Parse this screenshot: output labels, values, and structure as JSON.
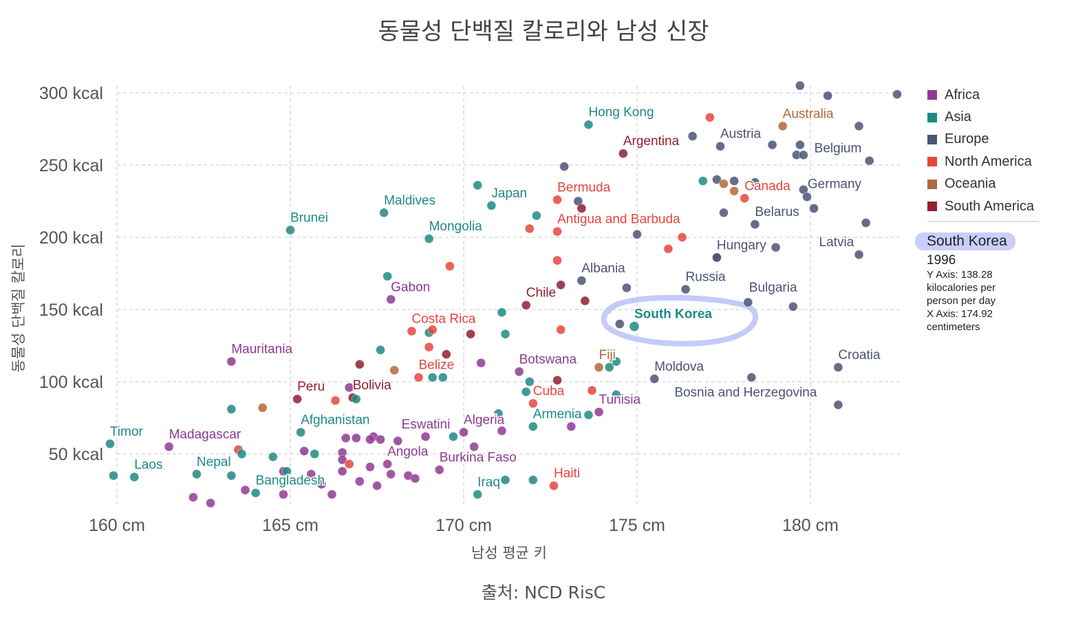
{
  "title": "동물성 단백질 칼로리와 남성 신장",
  "source": "출처: NCD RisC",
  "tooltip": {
    "country": "South Korea",
    "year": "1996",
    "y_text": "Y Axis: 138.28 kilocalories per person per day",
    "x_text": "X Axis: 174.92 centimeters"
  },
  "colors": {
    "Africa": "#8e3a94",
    "Asia": "#1f8a84",
    "Europe": "#4a5473",
    "North America": "#e5463d",
    "Oceania": "#b0693a",
    "South America": "#921f2f",
    "highlight": "#c4cafa"
  },
  "chart_data": {
    "type": "scatter",
    "xlabel": "남성 평균 키",
    "ylabel": "동물성 단백질 칼로리",
    "x_ticks": [
      "160 cm",
      "165 cm",
      "170 cm",
      "175 cm",
      "180 cm"
    ],
    "y_ticks": [
      "50 kcal",
      "100 kcal",
      "150 kcal",
      "200 kcal",
      "250 kcal",
      "300 kcal"
    ],
    "xlim": [
      159.8,
      182.6
    ],
    "ylim": [
      16,
      302
    ],
    "grid": true,
    "legend_position": "right",
    "legend": [
      "Africa",
      "Asia",
      "Europe",
      "North America",
      "Oceania",
      "South America"
    ],
    "highlighted": "South Korea",
    "points": [
      {
        "label": "Hong Kong",
        "region": "Asia",
        "x": 173.6,
        "y": 278
      },
      {
        "label": "Australia",
        "region": "Oceania",
        "x": 179.2,
        "y": 277
      },
      {
        "label": "Argentina",
        "region": "South America",
        "x": 174.6,
        "y": 258
      },
      {
        "label": "Austria",
        "region": "Europe",
        "x": 177.4,
        "y": 263
      },
      {
        "label": "Belgium",
        "region": "Europe",
        "x": 181.7,
        "y": 253
      },
      {
        "label": "Bermuda",
        "region": "North America",
        "x": 172.7,
        "y": 226
      },
      {
        "label": "Japan",
        "region": "Asia",
        "x": 170.8,
        "y": 222
      },
      {
        "label": "Canada",
        "region": "North America",
        "x": 178.1,
        "y": 227
      },
      {
        "label": "Germany",
        "region": "Europe",
        "x": 179.8,
        "y": 233
      },
      {
        "label": "Maldives",
        "region": "Asia",
        "x": 167.7,
        "y": 217
      },
      {
        "label": "Brunei",
        "region": "Asia",
        "x": 165.0,
        "y": 205
      },
      {
        "label": "Antigua and Barbuda",
        "region": "North America",
        "x": 172.7,
        "y": 204
      },
      {
        "label": "Belarus",
        "region": "Europe",
        "x": 178.4,
        "y": 209
      },
      {
        "label": "Mongolia",
        "region": "Asia",
        "x": 169.0,
        "y": 199
      },
      {
        "label": "Hungary",
        "region": "Europe",
        "x": 177.3,
        "y": 186
      },
      {
        "label": "Latvia",
        "region": "Europe",
        "x": 181.4,
        "y": 188
      },
      {
        "label": "Albania",
        "region": "Europe",
        "x": 173.4,
        "y": 170
      },
      {
        "label": "Russia",
        "region": "Europe",
        "x": 176.4,
        "y": 164
      },
      {
        "label": "Gabon",
        "region": "Africa",
        "x": 167.9,
        "y": 157
      },
      {
        "label": "Chile",
        "region": "South America",
        "x": 171.8,
        "y": 153
      },
      {
        "label": "Bulgaria",
        "region": "Europe",
        "x": 179.5,
        "y": 152
      },
      {
        "label": "South Korea",
        "region": "Asia",
        "x": 174.92,
        "y": 138.28
      },
      {
        "label": "Costa Rica",
        "region": "North America",
        "x": 168.5,
        "y": 135
      },
      {
        "label": "Mauritania",
        "region": "Africa",
        "x": 163.3,
        "y": 114
      },
      {
        "label": "Fiji",
        "region": "Oceania",
        "x": 173.9,
        "y": 110
      },
      {
        "label": "Botswana",
        "region": "Africa",
        "x": 171.6,
        "y": 107
      },
      {
        "label": "Belize",
        "region": "North America",
        "x": 168.7,
        "y": 103
      },
      {
        "label": "Croatia",
        "region": "Europe",
        "x": 180.8,
        "y": 110
      },
      {
        "label": "Moldova",
        "region": "Europe",
        "x": 175.5,
        "y": 102
      },
      {
        "label": "Peru",
        "region": "South America",
        "x": 165.2,
        "y": 88
      },
      {
        "label": "Bolivia",
        "region": "South America",
        "x": 166.8,
        "y": 89
      },
      {
        "label": "Cuba",
        "region": "North America",
        "x": 172.0,
        "y": 85
      },
      {
        "label": "Bosnia and Herzegovina",
        "region": "Europe",
        "x": 180.8,
        "y": 84
      },
      {
        "label": "Tunisia",
        "region": "Africa",
        "x": 173.9,
        "y": 79
      },
      {
        "label": "Armenia",
        "region": "Asia",
        "x": 172.0,
        "y": 69
      },
      {
        "label": "Afghanistan",
        "region": "Asia",
        "x": 165.3,
        "y": 65
      },
      {
        "label": "Eswatini",
        "region": "Africa",
        "x": 168.9,
        "y": 62
      },
      {
        "label": "Algeria",
        "region": "Africa",
        "x": 170.0,
        "y": 65
      },
      {
        "label": "Timor",
        "region": "Asia",
        "x": 159.8,
        "y": 57
      },
      {
        "label": "Madagascar",
        "region": "Africa",
        "x": 161.5,
        "y": 55
      },
      {
        "label": "Nepal",
        "region": "Asia",
        "x": 162.3,
        "y": 36
      },
      {
        "label": "Laos",
        "region": "Asia",
        "x": 160.5,
        "y": 34
      },
      {
        "label": "Angola",
        "region": "Africa",
        "x": 167.8,
        "y": 43
      },
      {
        "label": "Burkina Faso",
        "region": "Africa",
        "x": 169.3,
        "y": 39
      },
      {
        "label": "Bangladesh",
        "region": "Asia",
        "x": 164.0,
        "y": 23
      },
      {
        "label": "Haiti",
        "region": "North America",
        "x": 172.6,
        "y": 28
      },
      {
        "label": "Iraq",
        "region": "Asia",
        "x": 170.4,
        "y": 22
      },
      {
        "region": "Europe",
        "x": 179.7,
        "y": 305
      },
      {
        "region": "Europe",
        "x": 180.5,
        "y": 298
      },
      {
        "region": "Europe",
        "x": 182.5,
        "y": 299
      },
      {
        "region": "North America",
        "x": 177.1,
        "y": 283
      },
      {
        "region": "Europe",
        "x": 181.4,
        "y": 277
      },
      {
        "region": "Europe",
        "x": 176.6,
        "y": 270
      },
      {
        "region": "Europe",
        "x": 178.9,
        "y": 264
      },
      {
        "region": "Europe",
        "x": 179.7,
        "y": 264
      },
      {
        "region": "Europe",
        "x": 179.6,
        "y": 257
      },
      {
        "region": "Europe",
        "x": 179.8,
        "y": 257
      },
      {
        "region": "Europe",
        "x": 172.9,
        "y": 249
      },
      {
        "region": "Asia",
        "x": 170.4,
        "y": 236
      },
      {
        "region": "Asia",
        "x": 176.9,
        "y": 239
      },
      {
        "region": "Europe",
        "x": 177.3,
        "y": 240
      },
      {
        "region": "Oceania",
        "x": 177.5,
        "y": 237
      },
      {
        "region": "Europe",
        "x": 177.8,
        "y": 239
      },
      {
        "region": "Oceania",
        "x": 177.8,
        "y": 232
      },
      {
        "region": "Europe",
        "x": 178.4,
        "y": 238
      },
      {
        "region": "Europe",
        "x": 179.9,
        "y": 228
      },
      {
        "region": "Europe",
        "x": 180.1,
        "y": 220
      },
      {
        "region": "Europe",
        "x": 173.3,
        "y": 225
      },
      {
        "region": "South America",
        "x": 173.4,
        "y": 220
      },
      {
        "region": "Asia",
        "x": 172.1,
        "y": 215
      },
      {
        "region": "Europe",
        "x": 177.5,
        "y": 217
      },
      {
        "region": "Europe",
        "x": 181.6,
        "y": 210
      },
      {
        "region": "North America",
        "x": 171.9,
        "y": 206
      },
      {
        "region": "Europe",
        "x": 175.0,
        "y": 202
      },
      {
        "region": "North America",
        "x": 176.3,
        "y": 200
      },
      {
        "region": "North America",
        "x": 175.9,
        "y": 192
      },
      {
        "region": "Europe",
        "x": 179.0,
        "y": 193
      },
      {
        "region": "Europe",
        "x": 177.3,
        "y": 186
      },
      {
        "region": "North America",
        "x": 172.7,
        "y": 184
      },
      {
        "region": "North America",
        "x": 169.6,
        "y": 180
      },
      {
        "region": "Asia",
        "x": 167.8,
        "y": 173
      },
      {
        "region": "South America",
        "x": 172.8,
        "y": 167
      },
      {
        "region": "Europe",
        "x": 174.7,
        "y": 165
      },
      {
        "region": "South America",
        "x": 173.5,
        "y": 156
      },
      {
        "region": "Europe",
        "x": 178.2,
        "y": 155
      },
      {
        "region": "Asia",
        "x": 171.1,
        "y": 148
      },
      {
        "region": "Europe",
        "x": 174.5,
        "y": 140
      },
      {
        "region": "Asia",
        "x": 169.0,
        "y": 134
      },
      {
        "region": "North America",
        "x": 169.1,
        "y": 136
      },
      {
        "region": "South America",
        "x": 170.2,
        "y": 133
      },
      {
        "region": "Asia",
        "x": 171.2,
        "y": 133
      },
      {
        "region": "North America",
        "x": 172.8,
        "y": 136
      },
      {
        "region": "North America",
        "x": 169.0,
        "y": 124
      },
      {
        "region": "South America",
        "x": 169.5,
        "y": 119
      },
      {
        "region": "Asia",
        "x": 167.6,
        "y": 122
      },
      {
        "region": "Africa",
        "x": 170.5,
        "y": 113
      },
      {
        "region": "South America",
        "x": 167.0,
        "y": 112
      },
      {
        "region": "Oceania",
        "x": 168.0,
        "y": 108
      },
      {
        "region": "Asia",
        "x": 174.2,
        "y": 110
      },
      {
        "region": "Asia",
        "x": 174.4,
        "y": 114
      },
      {
        "region": "Asia",
        "x": 169.1,
        "y": 103
      },
      {
        "region": "Asia",
        "x": 169.4,
        "y": 103
      },
      {
        "region": "Asia",
        "x": 171.9,
        "y": 100
      },
      {
        "region": "South America",
        "x": 172.7,
        "y": 101
      },
      {
        "region": "Europe",
        "x": 178.3,
        "y": 103
      },
      {
        "region": "Asia",
        "x": 171.8,
        "y": 93
      },
      {
        "region": "North America",
        "x": 173.7,
        "y": 94
      },
      {
        "region": "Asia",
        "x": 174.4,
        "y": 91
      },
      {
        "region": "Africa",
        "x": 166.7,
        "y": 96
      },
      {
        "region": "North America",
        "x": 166.3,
        "y": 87
      },
      {
        "region": "Asia",
        "x": 166.9,
        "y": 88
      },
      {
        "region": "Asia",
        "x": 163.3,
        "y": 81
      },
      {
        "region": "Oceania",
        "x": 164.2,
        "y": 82
      },
      {
        "region": "Asia",
        "x": 171.0,
        "y": 78
      },
      {
        "region": "Asia",
        "x": 173.6,
        "y": 77
      },
      {
        "region": "Africa",
        "x": 173.1,
        "y": 69
      },
      {
        "region": "Africa",
        "x": 171.1,
        "y": 66
      },
      {
        "region": "Asia",
        "x": 169.7,
        "y": 62
      },
      {
        "region": "Africa",
        "x": 170.3,
        "y": 55
      },
      {
        "region": "Africa",
        "x": 166.6,
        "y": 61
      },
      {
        "region": "Africa",
        "x": 166.9,
        "y": 61
      },
      {
        "region": "Africa",
        "x": 167.4,
        "y": 62
      },
      {
        "region": "Africa",
        "x": 167.6,
        "y": 60
      },
      {
        "region": "Africa",
        "x": 168.1,
        "y": 59
      },
      {
        "region": "Africa",
        "x": 167.3,
        "y": 60
      },
      {
        "region": "Africa",
        "x": 165.4,
        "y": 52
      },
      {
        "region": "Africa",
        "x": 166.5,
        "y": 51
      },
      {
        "region": "Asia",
        "x": 165.7,
        "y": 50
      },
      {
        "region": "North America",
        "x": 163.5,
        "y": 53
      },
      {
        "region": "Asia",
        "x": 163.6,
        "y": 50
      },
      {
        "region": "Asia",
        "x": 164.5,
        "y": 48
      },
      {
        "region": "Africa",
        "x": 166.5,
        "y": 46
      },
      {
        "region": "North America",
        "x": 166.7,
        "y": 43
      },
      {
        "region": "Africa",
        "x": 167.3,
        "y": 41
      },
      {
        "region": "Africa",
        "x": 166.5,
        "y": 38
      },
      {
        "region": "Africa",
        "x": 164.8,
        "y": 38
      },
      {
        "region": "Asia",
        "x": 164.9,
        "y": 38
      },
      {
        "region": "Africa",
        "x": 165.6,
        "y": 36
      },
      {
        "region": "Africa",
        "x": 167.9,
        "y": 36
      },
      {
        "region": "Africa",
        "x": 168.4,
        "y": 35
      },
      {
        "region": "Africa",
        "x": 168.6,
        "y": 33
      },
      {
        "region": "Asia",
        "x": 163.3,
        "y": 35
      },
      {
        "region": "Africa",
        "x": 167.0,
        "y": 31
      },
      {
        "region": "Africa",
        "x": 167.5,
        "y": 28
      },
      {
        "region": "Asia",
        "x": 171.2,
        "y": 32
      },
      {
        "region": "Asia",
        "x": 172.0,
        "y": 32
      },
      {
        "region": "Africa",
        "x": 165.9,
        "y": 29
      },
      {
        "region": "Africa",
        "x": 163.7,
        "y": 25
      },
      {
        "region": "Africa",
        "x": 164.8,
        "y": 22
      },
      {
        "region": "Africa",
        "x": 166.2,
        "y": 22
      },
      {
        "region": "Africa",
        "x": 162.2,
        "y": 20
      },
      {
        "region": "Africa",
        "x": 162.7,
        "y": 16
      },
      {
        "region": "Asia",
        "x": 159.9,
        "y": 35
      }
    ]
  }
}
